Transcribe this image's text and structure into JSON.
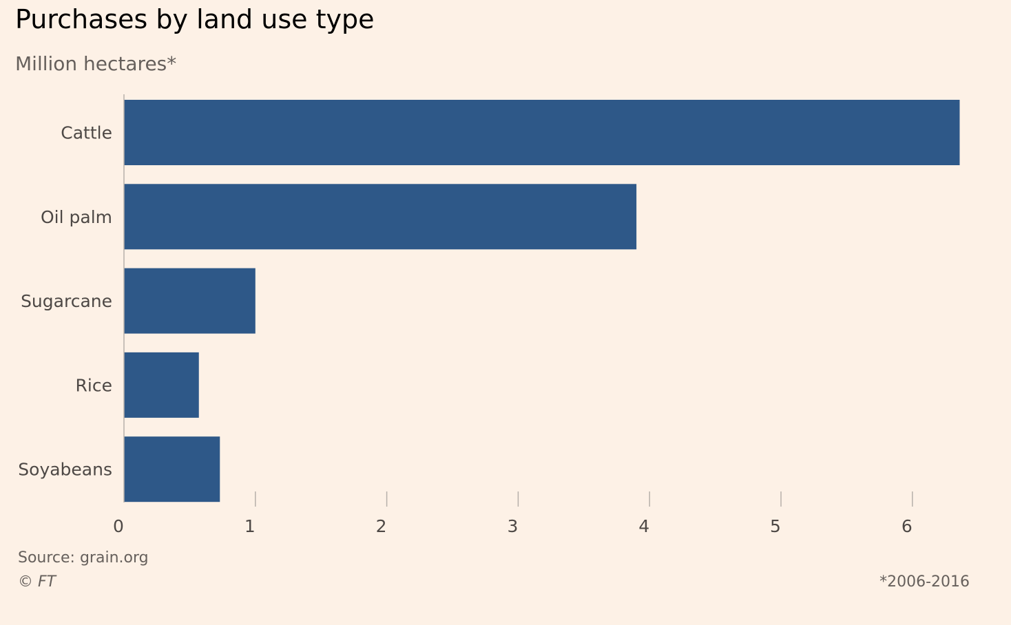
{
  "chart_data": {
    "type": "bar",
    "orientation": "horizontal",
    "title": "Purchases by land use type",
    "subtitle": "Million hectares*",
    "categories": [
      "Cattle",
      "Oil palm",
      "Sugarcane",
      "Rice",
      "Soyabeans"
    ],
    "values": [
      6.36,
      3.9,
      1.0,
      0.57,
      0.73
    ],
    "xlim": [
      0,
      6.6
    ],
    "xticks": [
      "0",
      "1",
      "2",
      "3",
      "4",
      "5",
      "6"
    ],
    "grid": false,
    "bar_color": "#2e5888"
  },
  "footer": {
    "source": "Source: grain.org",
    "copyright": "© FT",
    "note": "*2006-2016"
  }
}
